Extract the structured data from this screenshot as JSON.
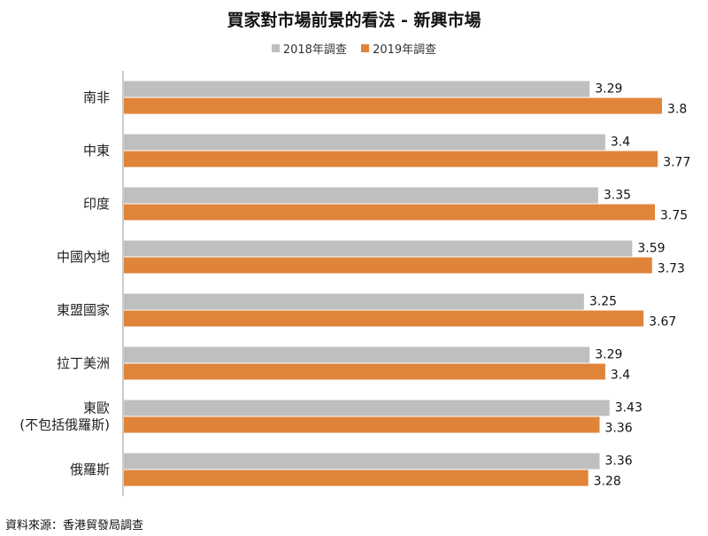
{
  "title": "買家對市場前景的看法 - 新興市場",
  "source": "資料來源：香港貿發局調查",
  "colors": {
    "s2018": "#bfbfbf",
    "s2019": "#e0843a",
    "axis": "#999999"
  },
  "chart_data": {
    "type": "bar",
    "orientation": "horizontal",
    "categories": [
      [
        "南非"
      ],
      [
        "中東"
      ],
      [
        "印度"
      ],
      [
        "中國內地"
      ],
      [
        "東盟國家"
      ],
      [
        "拉丁美洲"
      ],
      [
        "東歐",
        "(不包括俄羅斯)"
      ],
      [
        "俄羅斯"
      ]
    ],
    "series": [
      {
        "name": "2018年調查",
        "values": [
          3.29,
          3.4,
          3.35,
          3.59,
          3.25,
          3.29,
          3.43,
          3.36
        ]
      },
      {
        "name": "2019年調查",
        "values": [
          3.8,
          3.77,
          3.75,
          3.73,
          3.67,
          3.4,
          3.36,
          3.28
        ]
      }
    ],
    "legend_position": "top",
    "grid": false,
    "xlim": [
      0,
      3.8
    ]
  }
}
